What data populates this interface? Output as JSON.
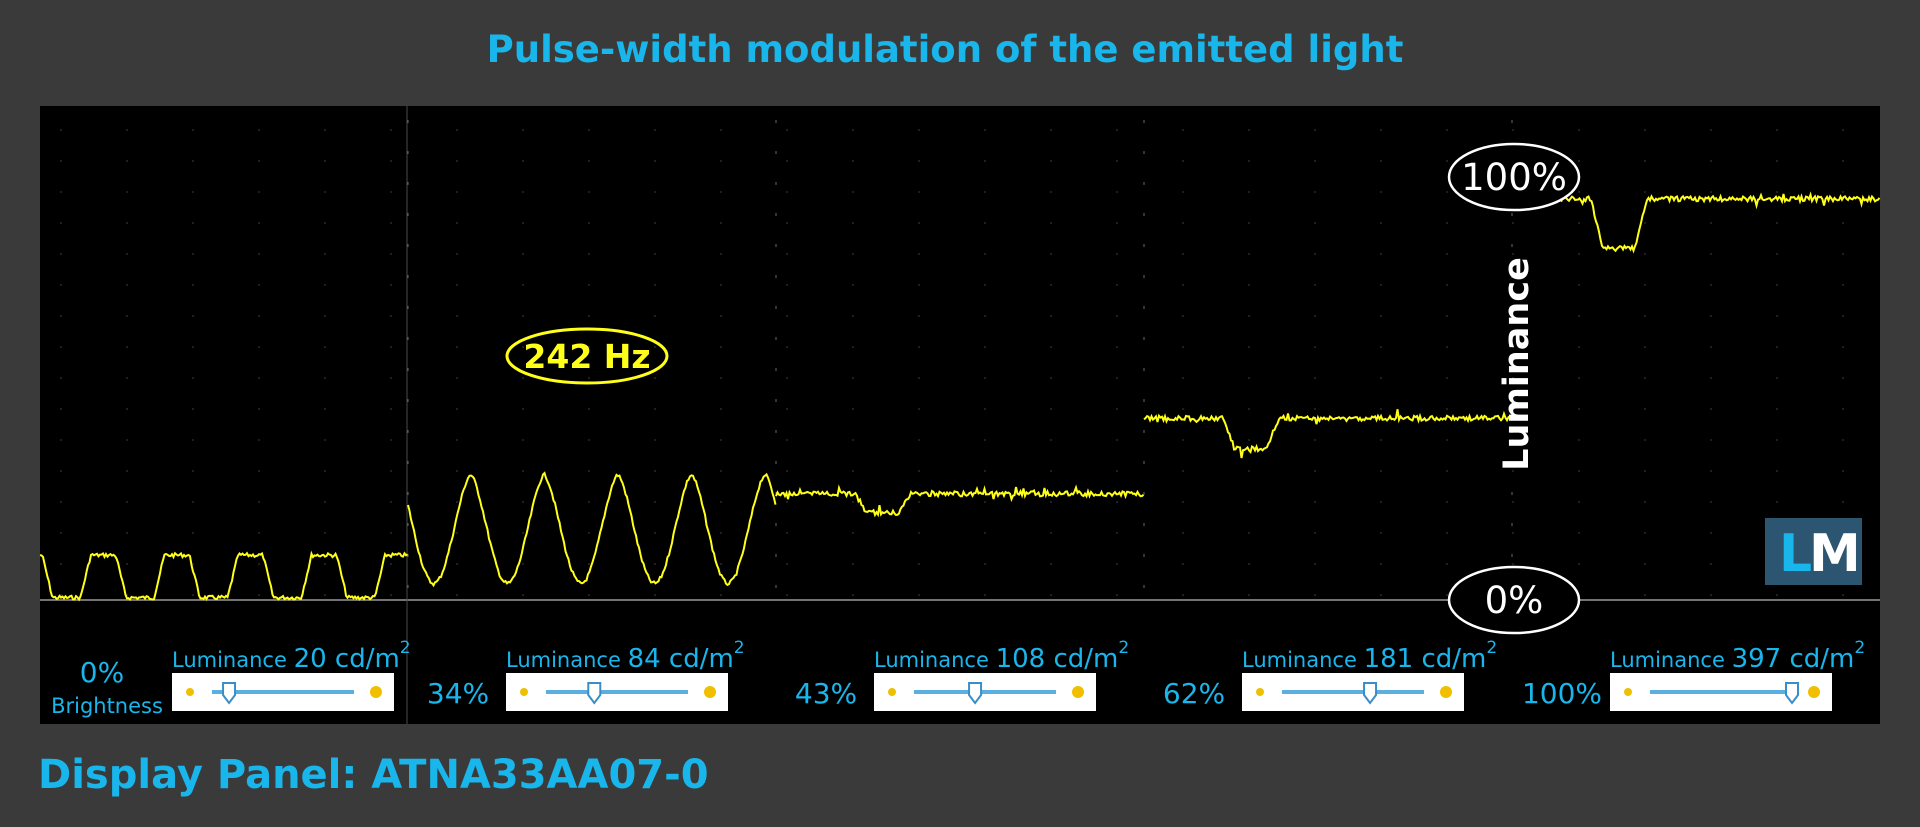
{
  "chart_data": {
    "type": "line",
    "title": "Pulse-width modulation of the emitted light",
    "ylabel": "Luminance",
    "y_axis_labels": {
      "top": "100%",
      "bottom": "0%"
    },
    "frequency_annotation": "242 Hz",
    "brightness_caption": "Brightness",
    "luminance_label": "Luminance",
    "luminance_unit": "cd/m",
    "luminance_unit_exponent": "2",
    "grid": true,
    "ylim": [
      0,
      100
    ],
    "series": [
      {
        "brightness_label": "0%",
        "luminance": "20",
        "slider": 0.12,
        "level": 9.5,
        "mode": "pulse",
        "pulse_low": 0.5,
        "pulses": 5
      },
      {
        "brightness_label": "34%",
        "luminance": "84",
        "slider": 0.34,
        "level": 26.5,
        "mode": "wave",
        "wave_low": 3.5,
        "pulses": 5
      },
      {
        "brightness_label": "43%",
        "luminance": "108",
        "slider": 0.43,
        "level": 22.5,
        "mode": "dip",
        "dip": 18.5
      },
      {
        "brightness_label": "62%",
        "luminance": "181",
        "slider": 0.62,
        "level": 38.5,
        "mode": "dip",
        "dip": 32
      },
      {
        "brightness_label": "100%",
        "luminance": "397",
        "slider": 1.0,
        "level": 85,
        "mode": "dip",
        "dip": 74.5
      }
    ],
    "colors": {
      "signal": "#ffff1a",
      "accent": "#19b6ec",
      "plot_bg": "#000000"
    }
  },
  "logo": {
    "text_l": "L",
    "text_m": "M"
  },
  "footer": {
    "display_panel": "Display Panel: ATNA33AA07-0"
  }
}
